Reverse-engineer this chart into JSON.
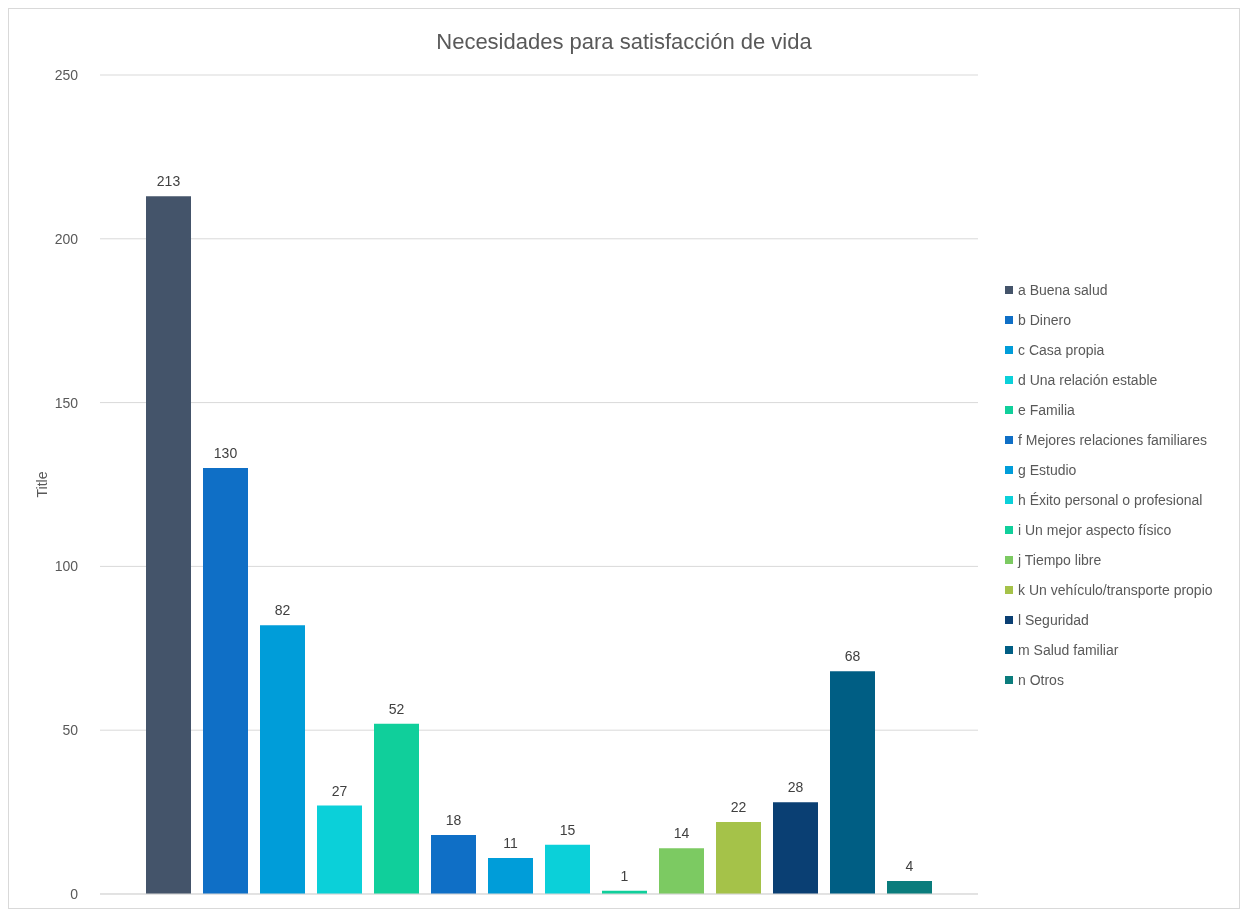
{
  "chart_data": {
    "type": "bar",
    "title": "Necesidades para satisfacción de vida",
    "ylabel": "Title",
    "categories": [
      null
    ],
    "series": [
      {
        "name": "a Buena salud",
        "color": "#44546a",
        "values": [
          213
        ]
      },
      {
        "name": "b Dinero",
        "color": "#0f6fc6",
        "values": [
          130
        ]
      },
      {
        "name": "c Casa propia",
        "color": "#009dd9",
        "values": [
          82
        ]
      },
      {
        "name": "d Una relación estable",
        "color": "#0bd0d9",
        "values": [
          27
        ]
      },
      {
        "name": "e Familia",
        "color": "#10cf9b",
        "values": [
          52
        ]
      },
      {
        "name": "f Mejores relaciones familiares",
        "color": "#0f6fc6",
        "values": [
          18
        ]
      },
      {
        "name": "g Estudio",
        "color": "#009dd9",
        "values": [
          11
        ]
      },
      {
        "name": "h Éxito personal o profesional",
        "color": "#0bd0d9",
        "values": [
          15
        ]
      },
      {
        "name": "i Un mejor aspecto físico",
        "color": "#10cf9b",
        "values": [
          1
        ]
      },
      {
        "name": "j Tiempo libre",
        "color": "#7cca62",
        "values": [
          14
        ]
      },
      {
        "name": "k Un vehículo/transporte propio",
        "color": "#a5c249",
        "values": [
          22
        ]
      },
      {
        "name": "l Seguridad",
        "color": "#0a3f73",
        "values": [
          28
        ]
      },
      {
        "name": "m Salud familiar",
        "color": "#005e84",
        "values": [
          68
        ]
      },
      {
        "name": "n Otros",
        "color": "#0a7c7c",
        "values": [
          4
        ]
      }
    ],
    "ylim": [
      0,
      250
    ],
    "yticks": [
      0,
      50,
      100,
      150,
      200,
      250
    ],
    "grid": "y",
    "legend": "right",
    "data_labels": true
  }
}
